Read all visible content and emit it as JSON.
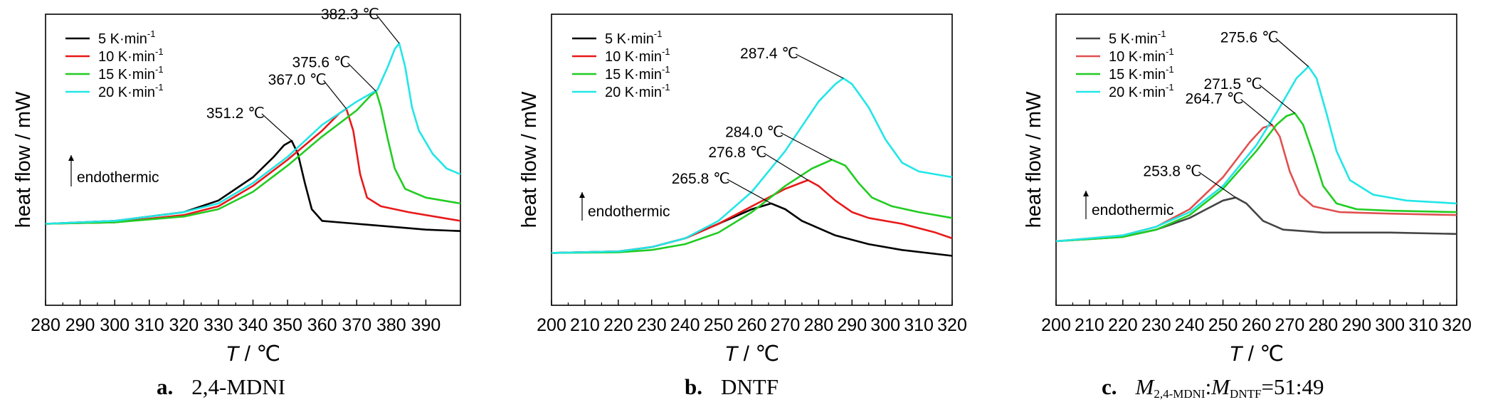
{
  "chart_data": [
    {
      "type": "line",
      "xlabel": "T / ℃",
      "ylabel": "heat flow / mW",
      "xlim": [
        280,
        400
      ],
      "xticks": [
        280,
        290,
        300,
        310,
        320,
        330,
        340,
        350,
        360,
        370,
        380,
        390
      ],
      "ylim": [
        0,
        1
      ],
      "yticks": "none",
      "grid": false,
      "legend_position": "top-left",
      "annotation": "endothermic",
      "caption": {
        "label": "a.",
        "text": "2,4-MDNI"
      },
      "series": [
        {
          "name": "5 K·min-1",
          "color": "#000000",
          "points": [
            [
              280,
              0.28
            ],
            [
              300,
              0.29
            ],
            [
              320,
              0.32
            ],
            [
              330,
              0.36
            ],
            [
              340,
              0.44
            ],
            [
              346,
              0.51
            ],
            [
              349,
              0.55
            ],
            [
              351.2,
              0.565
            ],
            [
              353,
              0.52
            ],
            [
              355,
              0.42
            ],
            [
              357,
              0.33
            ],
            [
              360,
              0.29
            ],
            [
              370,
              0.28
            ],
            [
              380,
              0.27
            ],
            [
              390,
              0.26
            ],
            [
              400,
              0.255
            ]
          ],
          "peak_label": "351.2 ℃",
          "peak": [
            351.2,
            0.565
          ]
        },
        {
          "name": "10 K·min-1",
          "color": "#e8191a",
          "points": [
            [
              280,
              0.28
            ],
            [
              300,
              0.285
            ],
            [
              320,
              0.31
            ],
            [
              330,
              0.34
            ],
            [
              340,
              0.41
            ],
            [
              350,
              0.5
            ],
            [
              360,
              0.6
            ],
            [
              365,
              0.66
            ],
            [
              367,
              0.675
            ],
            [
              369,
              0.6
            ],
            [
              371,
              0.45
            ],
            [
              373,
              0.37
            ],
            [
              377,
              0.34
            ],
            [
              385,
              0.32
            ],
            [
              395,
              0.3
            ],
            [
              400,
              0.29
            ]
          ],
          "peak_label": "367.0 ℃",
          "peak": [
            367.0,
            0.675
          ]
        },
        {
          "name": "15 K·min-1",
          "color": "#22cc22",
          "points": [
            [
              280,
              0.28
            ],
            [
              300,
              0.285
            ],
            [
              320,
              0.305
            ],
            [
              330,
              0.33
            ],
            [
              340,
              0.39
            ],
            [
              350,
              0.48
            ],
            [
              360,
              0.58
            ],
            [
              370,
              0.67
            ],
            [
              374,
              0.72
            ],
            [
              375.6,
              0.735
            ],
            [
              377,
              0.68
            ],
            [
              379,
              0.57
            ],
            [
              381,
              0.47
            ],
            [
              384,
              0.4
            ],
            [
              390,
              0.37
            ],
            [
              400,
              0.35
            ]
          ],
          "peak_label": "375.6 ℃",
          "peak": [
            375.6,
            0.735
          ]
        },
        {
          "name": "20 K·min-1",
          "color": "#22e6e6",
          "points": [
            [
              280,
              0.28
            ],
            [
              300,
              0.29
            ],
            [
              320,
              0.32
            ],
            [
              330,
              0.35
            ],
            [
              340,
              0.42
            ],
            [
              350,
              0.51
            ],
            [
              360,
              0.62
            ],
            [
              370,
              0.7
            ],
            [
              376,
              0.74
            ],
            [
              379,
              0.82
            ],
            [
              381,
              0.88
            ],
            [
              382.3,
              0.9
            ],
            [
              384,
              0.82
            ],
            [
              386,
              0.68
            ],
            [
              388,
              0.6
            ],
            [
              392,
              0.52
            ],
            [
              396,
              0.47
            ],
            [
              400,
              0.45
            ]
          ],
          "peak_label": "382.3 ℃",
          "peak": [
            382.3,
            0.9
          ]
        }
      ]
    },
    {
      "type": "line",
      "xlabel": "T / ℃",
      "ylabel": "heat flow / mW",
      "xlim": [
        200,
        320
      ],
      "xticks": [
        200,
        210,
        220,
        230,
        240,
        250,
        260,
        270,
        280,
        290,
        300,
        310,
        320
      ],
      "ylim": [
        0,
        1
      ],
      "yticks": "none",
      "grid": false,
      "legend_position": "top-left",
      "annotation": "endothermic",
      "caption": {
        "label": "b.",
        "text": "DNTF"
      },
      "series": [
        {
          "name": "5 K·min-1",
          "color": "#000000",
          "points": [
            [
              200,
              0.18
            ],
            [
              220,
              0.185
            ],
            [
              230,
              0.2
            ],
            [
              240,
              0.23
            ],
            [
              250,
              0.28
            ],
            [
              260,
              0.33
            ],
            [
              265.8,
              0.35
            ],
            [
              270,
              0.33
            ],
            [
              275,
              0.29
            ],
            [
              285,
              0.24
            ],
            [
              295,
              0.21
            ],
            [
              305,
              0.19
            ],
            [
              320,
              0.17
            ]
          ],
          "peak_label": "265.8 ℃",
          "peak": [
            265.8,
            0.35
          ]
        },
        {
          "name": "10 K·min-1",
          "color": "#e8191a",
          "points": [
            [
              200,
              0.18
            ],
            [
              220,
              0.185
            ],
            [
              230,
              0.2
            ],
            [
              240,
              0.23
            ],
            [
              250,
              0.28
            ],
            [
              260,
              0.34
            ],
            [
              270,
              0.4
            ],
            [
              276.8,
              0.43
            ],
            [
              280,
              0.41
            ],
            [
              285,
              0.36
            ],
            [
              290,
              0.32
            ],
            [
              295,
              0.3
            ],
            [
              305,
              0.28
            ],
            [
              315,
              0.25
            ],
            [
              320,
              0.23
            ]
          ],
          "peak_label": "276.8 ℃",
          "peak": [
            276.8,
            0.43
          ]
        },
        {
          "name": "15 K·min-1",
          "color": "#22cc22",
          "points": [
            [
              200,
              0.18
            ],
            [
              220,
              0.182
            ],
            [
              230,
              0.19
            ],
            [
              240,
              0.21
            ],
            [
              250,
              0.25
            ],
            [
              260,
              0.32
            ],
            [
              270,
              0.41
            ],
            [
              278,
              0.47
            ],
            [
              284.0,
              0.5
            ],
            [
              288,
              0.48
            ],
            [
              292,
              0.42
            ],
            [
              296,
              0.37
            ],
            [
              302,
              0.34
            ],
            [
              310,
              0.32
            ],
            [
              320,
              0.3
            ]
          ],
          "peak_label": "284.0 ℃",
          "peak": [
            284.0,
            0.5
          ]
        },
        {
          "name": "20 K·min-1",
          "color": "#22e6e6",
          "points": [
            [
              200,
              0.18
            ],
            [
              220,
              0.185
            ],
            [
              230,
              0.2
            ],
            [
              240,
              0.23
            ],
            [
              250,
              0.29
            ],
            [
              260,
              0.39
            ],
            [
              270,
              0.53
            ],
            [
              280,
              0.7
            ],
            [
              285,
              0.76
            ],
            [
              287.4,
              0.78
            ],
            [
              290,
              0.76
            ],
            [
              295,
              0.68
            ],
            [
              300,
              0.57
            ],
            [
              305,
              0.49
            ],
            [
              310,
              0.46
            ],
            [
              320,
              0.44
            ]
          ],
          "peak_label": "287.4 ℃",
          "peak": [
            287.4,
            0.78
          ]
        }
      ]
    },
    {
      "type": "line",
      "xlabel": "T / ℃",
      "ylabel": "heat flow / mW",
      "xlim": [
        200,
        320
      ],
      "xticks": [
        200,
        210,
        220,
        230,
        240,
        250,
        260,
        270,
        280,
        290,
        300,
        310,
        320
      ],
      "ylim": [
        0,
        1
      ],
      "yticks": "none",
      "grid": false,
      "legend_position": "top-left",
      "annotation": "endothermic",
      "caption": {
        "label": "c.",
        "text": "M2,4-MDNI:MDNTF=51:49"
      },
      "series": [
        {
          "name": "5 K·min-1",
          "color": "#444444",
          "points": [
            [
              200,
              0.22
            ],
            [
              220,
              0.235
            ],
            [
              230,
              0.26
            ],
            [
              240,
              0.3
            ],
            [
              245,
              0.33
            ],
            [
              250,
              0.36
            ],
            [
              253.8,
              0.37
            ],
            [
              257,
              0.35
            ],
            [
              262,
              0.29
            ],
            [
              268,
              0.26
            ],
            [
              280,
              0.25
            ],
            [
              300,
              0.25
            ],
            [
              320,
              0.245
            ]
          ],
          "peak_label": "253.8 ℃",
          "peak": [
            253.8,
            0.37
          ]
        },
        {
          "name": "10 K·min-1",
          "color": "#e05050",
          "points": [
            [
              200,
              0.22
            ],
            [
              220,
              0.24
            ],
            [
              230,
              0.27
            ],
            [
              240,
              0.33
            ],
            [
              250,
              0.44
            ],
            [
              258,
              0.56
            ],
            [
              262,
              0.61
            ],
            [
              264.7,
              0.62
            ],
            [
              267,
              0.58
            ],
            [
              270,
              0.46
            ],
            [
              273,
              0.38
            ],
            [
              277,
              0.34
            ],
            [
              285,
              0.32
            ],
            [
              300,
              0.315
            ],
            [
              320,
              0.31
            ]
          ],
          "peak_label": "264.7 ℃",
          "peak": [
            264.7,
            0.62
          ]
        },
        {
          "name": "15 K·min-1",
          "color": "#22cc22",
          "points": [
            [
              200,
              0.22
            ],
            [
              220,
              0.235
            ],
            [
              230,
              0.26
            ],
            [
              240,
              0.31
            ],
            [
              250,
              0.4
            ],
            [
              260,
              0.53
            ],
            [
              266,
              0.62
            ],
            [
              269,
              0.65
            ],
            [
              271.5,
              0.66
            ],
            [
              274,
              0.62
            ],
            [
              277,
              0.52
            ],
            [
              280,
              0.41
            ],
            [
              284,
              0.35
            ],
            [
              290,
              0.33
            ],
            [
              300,
              0.325
            ],
            [
              320,
              0.32
            ]
          ],
          "peak_label": "271.5 ℃",
          "peak": [
            271.5,
            0.66
          ]
        },
        {
          "name": "20 K·min-1",
          "color": "#22e6e6",
          "points": [
            [
              200,
              0.22
            ],
            [
              220,
              0.24
            ],
            [
              230,
              0.27
            ],
            [
              240,
              0.32
            ],
            [
              250,
              0.41
            ],
            [
              260,
              0.55
            ],
            [
              267,
              0.68
            ],
            [
              272,
              0.78
            ],
            [
              275.6,
              0.82
            ],
            [
              278,
              0.78
            ],
            [
              281,
              0.66
            ],
            [
              284,
              0.53
            ],
            [
              288,
              0.43
            ],
            [
              295,
              0.38
            ],
            [
              305,
              0.36
            ],
            [
              320,
              0.35
            ]
          ],
          "peak_label": "275.6 ℃",
          "peak": [
            275.6,
            0.82
          ]
        }
      ]
    }
  ]
}
